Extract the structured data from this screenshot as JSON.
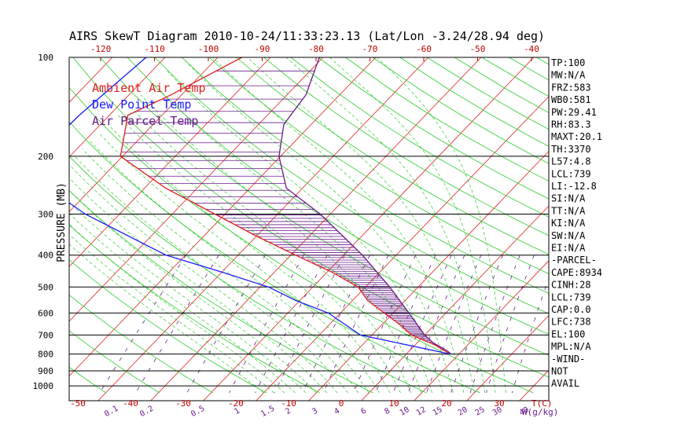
{
  "chart_data": {
    "type": "line",
    "title": "AIRS SkewT Diagram 2010-10-24/11:33:23.13 (Lat/Lon -3.24/28.94 deg)",
    "ylabel": "PRESSURE (MB)",
    "xlabel": "T(C)",
    "mixing_ratio_label": "W(g/kg)",
    "pressure_ticks": [
      100,
      200,
      300,
      400,
      500,
      600,
      700,
      800,
      900,
      1000
    ],
    "temp_ticks_top": [
      -120,
      -110,
      -100,
      -90,
      -80,
      -70,
      -60,
      -50,
      -40
    ],
    "temp_ticks_bottom": [
      -50,
      -40,
      -30,
      -20,
      -10,
      0,
      10,
      20,
      30
    ],
    "mixing_ratio_ticks": [
      "0.1",
      "0.2",
      "0.5",
      "1",
      "1.5",
      "2",
      "3",
      "4",
      "6",
      "8",
      "10",
      "12",
      "15",
      "20",
      "25",
      "30",
      "40"
    ],
    "legend": [
      {
        "name": "Ambient Air Temp",
        "color": "#e02020"
      },
      {
        "name": "Dew Point Temp",
        "color": "#1a1aff"
      },
      {
        "name": "Air Parcel Temp",
        "color": "#6a1a8a"
      }
    ],
    "series": [
      {
        "name": "Ambient Air Temp",
        "color": "#e02020",
        "points": [
          [
            100,
            -75.4
          ],
          [
            130,
            -82.0
          ],
          [
            150,
            -86.5
          ],
          [
            200,
            -80.4
          ],
          [
            250,
            -66.0
          ],
          [
            300,
            -51.9
          ],
          [
            350,
            -40.0
          ],
          [
            400,
            -29.1
          ],
          [
            450,
            -19.2
          ],
          [
            500,
            -11.4
          ],
          [
            550,
            -7.1
          ],
          [
            600,
            -1.7
          ],
          [
            650,
            3.3
          ],
          [
            700,
            7.5
          ],
          [
            750,
            13.7
          ],
          [
            800,
            18.3
          ]
        ]
      },
      {
        "name": "Dew Point Temp",
        "color": "#1a1aff",
        "points": [
          [
            100,
            -93.6
          ],
          [
            150,
            -95.7
          ],
          [
            200,
            -96.2
          ],
          [
            250,
            -88.3
          ],
          [
            300,
            -76.5
          ],
          [
            400,
            -53.7
          ],
          [
            450,
            -40.1
          ],
          [
            500,
            -28.4
          ],
          [
            550,
            -20.7
          ],
          [
            600,
            -12.3
          ],
          [
            700,
            -2.2
          ],
          [
            800,
            18.3
          ]
        ]
      },
      {
        "name": "Air Parcel Temp",
        "color": "#6a1a8a",
        "points": [
          [
            100,
            -60.7
          ],
          [
            130,
            -56.4
          ],
          [
            160,
            -55.2
          ],
          [
            200,
            -50.3
          ],
          [
            250,
            -43.1
          ],
          [
            300,
            -31.9
          ],
          [
            400,
            -16.4
          ],
          [
            500,
            -5.4
          ],
          [
            600,
            3.0
          ],
          [
            700,
            10.0
          ],
          [
            740,
            13.1
          ],
          [
            780,
            17.0
          ],
          [
            800,
            18.5
          ]
        ]
      }
    ],
    "indices": [
      "TP:100",
      "MW:N/A",
      "FRZ:583",
      "WB0:581",
      "PW:29.41",
      "RH:83.3",
      "MAXT:20.1",
      "TH:3370",
      "L57:4.8",
      "LCL:739",
      "LI:-12.8",
      "SI:N/A",
      "TT:N/A",
      "KI:N/A",
      "SW:N/A",
      "EI:N/A",
      "-PARCEL-",
      "CAPE:8934",
      "CINH:28",
      "LCL:739",
      "CAP:0.0",
      "LFC:738",
      "EL:100",
      "MPL:N/A",
      "-WIND-",
      "NOT",
      "AVAIL"
    ],
    "colors": {
      "dry_adiabat": "#2ecc2e",
      "moist_adiabat": "#2ecc2e",
      "isotherm": "#e02020",
      "mixing_ratio": "#6a1a8a",
      "cape_fill": "#6a1a8a"
    }
  }
}
